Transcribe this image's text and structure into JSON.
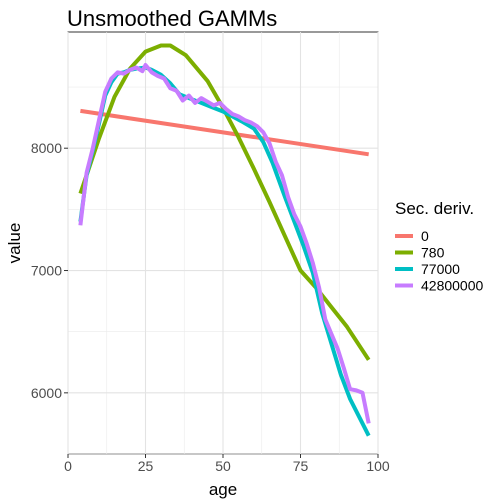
{
  "chart_data": {
    "type": "line",
    "title": "Unsmoothed GAMMs",
    "xlabel": "age",
    "ylabel": "value",
    "xlim": [
      0,
      100
    ],
    "ylim": [
      5500,
      8950
    ],
    "x_ticks": [
      0,
      25,
      50,
      75,
      100
    ],
    "y_ticks": [
      6000,
      7000,
      8000
    ],
    "grid": true,
    "legend": {
      "title": "Sec. deriv.",
      "placement": "right"
    },
    "series": [
      {
        "name": "0",
        "color": "#F8766D",
        "x": [
          4,
          97
        ],
        "y": [
          8305,
          7950
        ]
      },
      {
        "name": "780",
        "color": "#7CAE00",
        "x": [
          4,
          10,
          15,
          20,
          25,
          30,
          33,
          38,
          45,
          50,
          55,
          60,
          65,
          70,
          75,
          80,
          85,
          90,
          97
        ],
        "y": [
          7630,
          8080,
          8420,
          8650,
          8790,
          8840,
          8840,
          8760,
          8550,
          8330,
          8090,
          7830,
          7560,
          7280,
          7000,
          6860,
          6700,
          6540,
          6270
        ]
      },
      {
        "name": "77000",
        "color": "#00BFC4",
        "x": [
          4,
          6,
          8,
          10,
          12,
          14,
          16,
          18,
          20,
          22,
          25,
          27,
          30,
          33,
          36,
          40,
          43,
          46,
          50,
          53,
          56,
          60,
          63,
          66,
          70,
          73,
          76,
          79,
          82,
          85,
          88,
          91,
          94,
          97
        ],
        "y": [
          7400,
          7780,
          7980,
          8200,
          8430,
          8540,
          8610,
          8620,
          8640,
          8650,
          8660,
          8640,
          8600,
          8530,
          8440,
          8400,
          8370,
          8340,
          8300,
          8260,
          8220,
          8160,
          8050,
          7880,
          7600,
          7400,
          7200,
          6980,
          6650,
          6400,
          6150,
          5950,
          5800,
          5650
        ]
      },
      {
        "name": "42800000",
        "color": "#C77CFF",
        "x": [
          4,
          6,
          8,
          10,
          12,
          14,
          16,
          18,
          20,
          22,
          24,
          25,
          27,
          29,
          31,
          33,
          35,
          37,
          39,
          41,
          43,
          45,
          47,
          49,
          51,
          53,
          55,
          57,
          59,
          61,
          63,
          65,
          67,
          69,
          71,
          73,
          75,
          77,
          79,
          81,
          83,
          85,
          87,
          89,
          91,
          93,
          95,
          97
        ],
        "y": [
          7370,
          7800,
          8000,
          8230,
          8460,
          8570,
          8620,
          8610,
          8640,
          8660,
          8630,
          8680,
          8620,
          8590,
          8570,
          8490,
          8470,
          8390,
          8430,
          8370,
          8410,
          8380,
          8350,
          8370,
          8320,
          8280,
          8260,
          8230,
          8210,
          8180,
          8130,
          8040,
          7890,
          7780,
          7600,
          7460,
          7360,
          7220,
          7060,
          6860,
          6600,
          6480,
          6360,
          6200,
          6030,
          6020,
          6000,
          5750
        ]
      }
    ]
  }
}
